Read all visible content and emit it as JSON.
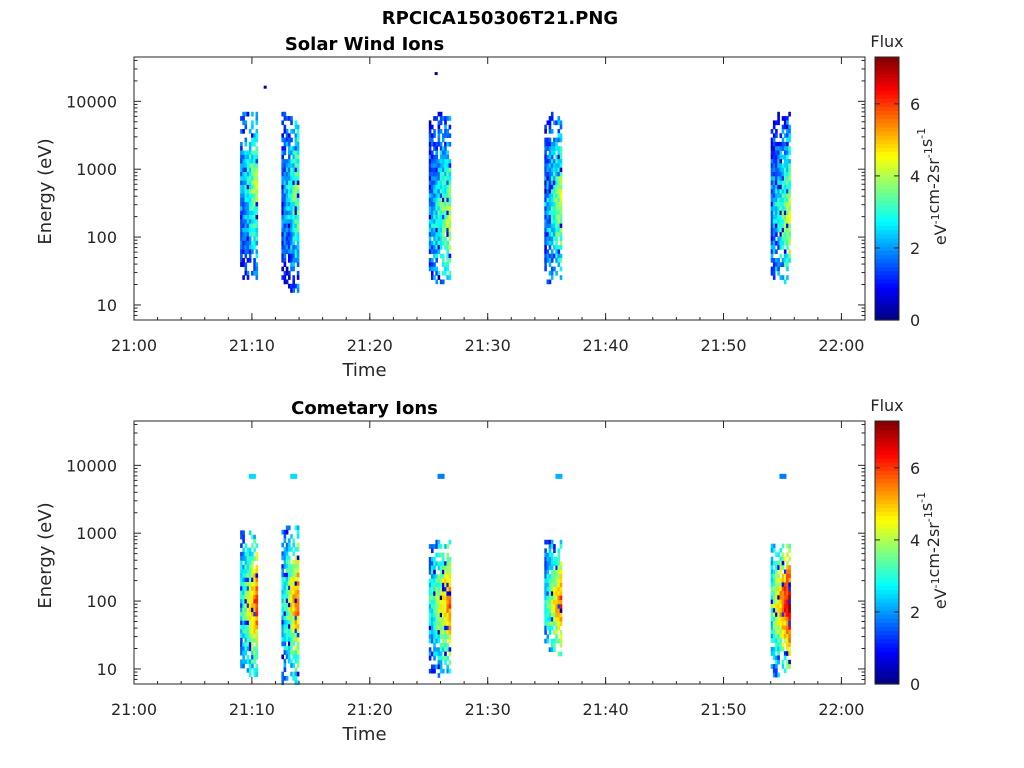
{
  "figure": {
    "title": "RPCICA150306T21.PNG"
  },
  "chart_data": [
    {
      "type": "heatmap",
      "title": "Solar Wind Ions",
      "xlabel": "Time",
      "ylabel": "Energy (eV)",
      "yscale": "log",
      "xlim": [
        "21:00",
        "22:02"
      ],
      "ylim": [
        6,
        45000
      ],
      "xticks": [
        "21:00",
        "21:10",
        "21:20",
        "21:30",
        "21:40",
        "21:50",
        "22:00"
      ],
      "yticks": [
        {
          "value": 10,
          "label": "10"
        },
        {
          "value": 100,
          "label": "100"
        },
        {
          "value": 1000,
          "label": "1000"
        },
        {
          "value": 10000,
          "label": "10000"
        }
      ],
      "colorbar": {
        "title": "Flux",
        "label": "eV-1cm-2sr-1s-1",
        "range": [
          0,
          7.3
        ],
        "ticks": [
          0,
          2,
          4,
          6
        ],
        "colormap": "jet"
      },
      "bursts": [
        {
          "start": "21:09",
          "end": "21:10.5",
          "e_min": 20,
          "e_max": 7000,
          "core_flux": 3.6,
          "peak_energy": 600
        },
        {
          "start": "21:12.5",
          "end": "21:14",
          "e_min": 15,
          "e_max": 7000,
          "core_flux": 3.4,
          "peak_energy": 500
        },
        {
          "start": "21:25",
          "end": "21:26.8",
          "e_min": 20,
          "e_max": 7000,
          "core_flux": 3.8,
          "peak_energy": 200
        },
        {
          "start": "21:34.8",
          "end": "21:36.3",
          "e_min": 20,
          "e_max": 7000,
          "core_flux": 3.7,
          "peak_energy": 300
        },
        {
          "start": "21:54",
          "end": "21:55.7",
          "e_min": 20,
          "e_max": 7000,
          "core_flux": 3.8,
          "peak_energy": 200
        }
      ],
      "isolated_points": [
        {
          "time": "21:11",
          "energy": 17000,
          "flux": 0.3
        },
        {
          "time": "21:25.5",
          "energy": 27000,
          "flux": 0.3
        }
      ]
    },
    {
      "type": "heatmap",
      "title": "Cometary Ions",
      "xlabel": "Time",
      "ylabel": "Energy (eV)",
      "yscale": "log",
      "xlim": [
        "21:00",
        "22:02"
      ],
      "ylim": [
        6,
        45000
      ],
      "xticks": [
        "21:00",
        "21:10",
        "21:20",
        "21:30",
        "21:40",
        "21:50",
        "22:00"
      ],
      "yticks": [
        {
          "value": 10,
          "label": "10"
        },
        {
          "value": 100,
          "label": "100"
        },
        {
          "value": 1000,
          "label": "1000"
        },
        {
          "value": 10000,
          "label": "10000"
        }
      ],
      "colorbar": {
        "title": "Flux",
        "label": "eV-1cm-2sr-1s-1",
        "range": [
          0,
          7.3
        ],
        "ticks": [
          0,
          2,
          4,
          6
        ],
        "colormap": "jet"
      },
      "bursts": [
        {
          "start": "21:09",
          "end": "21:10.5",
          "e_min": 8,
          "e_max": 1100,
          "core_flux": 5.3,
          "peak_energy": 100
        },
        {
          "start": "21:12.5",
          "end": "21:14",
          "e_min": 6,
          "e_max": 1300,
          "core_flux": 5.1,
          "peak_energy": 100
        },
        {
          "start": "21:25",
          "end": "21:26.8",
          "e_min": 8,
          "e_max": 800,
          "core_flux": 5.2,
          "peak_energy": 100
        },
        {
          "start": "21:34.8",
          "end": "21:36.3",
          "e_min": 15,
          "e_max": 800,
          "core_flux": 5.2,
          "peak_energy": 100
        },
        {
          "start": "21:54",
          "end": "21:55.7",
          "e_min": 8,
          "e_max": 700,
          "core_flux": 6.3,
          "peak_energy": 100
        }
      ],
      "high_energy_blips": [
        {
          "time": "21:10",
          "energy": 7000,
          "flux": 2.5
        },
        {
          "time": "21:13.5",
          "energy": 7000,
          "flux": 2.5
        },
        {
          "time": "21:26",
          "energy": 7000,
          "flux": 1.8
        },
        {
          "time": "21:36",
          "energy": 7000,
          "flux": 2.2
        },
        {
          "time": "21:55",
          "energy": 7000,
          "flux": 1.8
        }
      ]
    }
  ]
}
